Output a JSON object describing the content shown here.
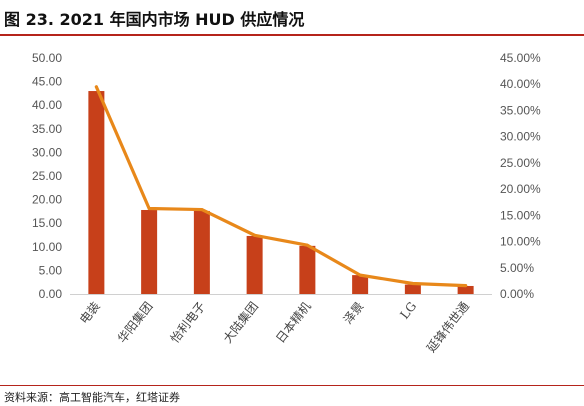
{
  "figure": {
    "title": "图 23. 2021 年国内市场 HUD 供应情况",
    "source": "资料来源：高工智能汽车，红塔证券"
  },
  "colors": {
    "bar": "#c7401a",
    "line": "#e8881a",
    "axis": "#d0d0d0",
    "rule": "#b5241b"
  },
  "chart_data": {
    "type": "bar",
    "categories": [
      "电装",
      "华阳集团",
      "怡利电子",
      "大陆集团",
      "日本精机",
      "泽景",
      "LG",
      "延锋伟世通"
    ],
    "series": [
      {
        "type": "bar",
        "axis": "left",
        "values": [
          43.0,
          17.8,
          17.6,
          12.3,
          10.2,
          4.0,
          2.0,
          1.7
        ]
      },
      {
        "type": "line",
        "axis": "right",
        "values": [
          39.5,
          16.3,
          16.1,
          11.2,
          9.3,
          3.6,
          2.0,
          1.6
        ]
      }
    ],
    "y_left": {
      "min": 0,
      "max": 50,
      "step": 5,
      "ticks": [
        "0.00",
        "5.00",
        "10.00",
        "15.00",
        "20.00",
        "25.00",
        "30.00",
        "35.00",
        "40.00",
        "45.00",
        "50.00"
      ]
    },
    "y_right": {
      "min": 0,
      "max": 45,
      "step": 5,
      "ticks": [
        "0.00%",
        "5.00%",
        "10.00%",
        "15.00%",
        "20.00%",
        "25.00%",
        "30.00%",
        "35.00%",
        "40.00%",
        "45.00%"
      ]
    },
    "grid": false,
    "legend": "none"
  }
}
